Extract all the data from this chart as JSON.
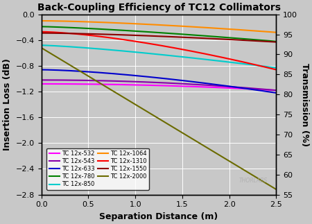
{
  "title": "Back-Coupling Efficiency of TC12 Collimators",
  "xlabel": "Separation Distance (m)",
  "ylabel_left": "Insertion Loss (dB)",
  "ylabel_right": "Transmission (%)",
  "xlim": [
    0.0,
    2.5
  ],
  "ylim_left": [
    -2.8,
    0.0
  ],
  "ylim_right": [
    55,
    100
  ],
  "x_ticks": [
    0.0,
    0.5,
    1.0,
    1.5,
    2.0,
    2.5
  ],
  "y_ticks_left": [
    0.0,
    -0.4,
    -0.8,
    -1.2,
    -1.6,
    -2.0,
    -2.4,
    -2.8
  ],
  "y_ticks_right": [
    100,
    95,
    90,
    85,
    80,
    75,
    70,
    65,
    60,
    55
  ],
  "background_color": "#c8c8c8",
  "plot_bg_color": "#c8c8c8",
  "grid_color": "#ffffff",
  "watermark": "THORLABS",
  "series": {
    "TC 12x-532": {
      "color": "#ff00ff",
      "y0": -1.08,
      "y1": -1.18,
      "exp": 2.0
    },
    "TC 12x-543": {
      "color": "#8800aa",
      "y0": -1.02,
      "y1": -1.18,
      "exp": 2.0
    },
    "TC 12x-633": {
      "color": "#0000cc",
      "y0": -0.86,
      "y1": -1.22,
      "exp": 1.5
    },
    "TC 12x-780": {
      "color": "#008000",
      "y0": -0.19,
      "y1": -0.42,
      "exp": 1.3
    },
    "TC 12x-850": {
      "color": "#00cccc",
      "y0": -0.48,
      "y1": -0.83,
      "exp": 1.3
    },
    "TC 12x-1064": {
      "color": "#ff8c00",
      "y0": -0.1,
      "y1": -0.28,
      "exp": 1.5
    },
    "TC 12x-1310": {
      "color": "#ff0000",
      "y0": -0.27,
      "y1": -0.86,
      "exp": 1.5
    },
    "TC 12x-1550": {
      "color": "#8b0000",
      "y0": -0.29,
      "y1": -0.43,
      "exp": 1.5
    },
    "TC 12x-2000": {
      "color": "#6b6b00",
      "y0": -0.52,
      "y1": -2.72,
      "exp": 1.0
    }
  },
  "legend_order": [
    "TC 12x-532",
    "TC 12x-543",
    "TC 12x-633",
    "TC 12x-780",
    "TC 12x-850",
    "TC 12x-1064",
    "TC 12x-1310",
    "TC 12x-1550",
    "TC 12x-2000"
  ]
}
